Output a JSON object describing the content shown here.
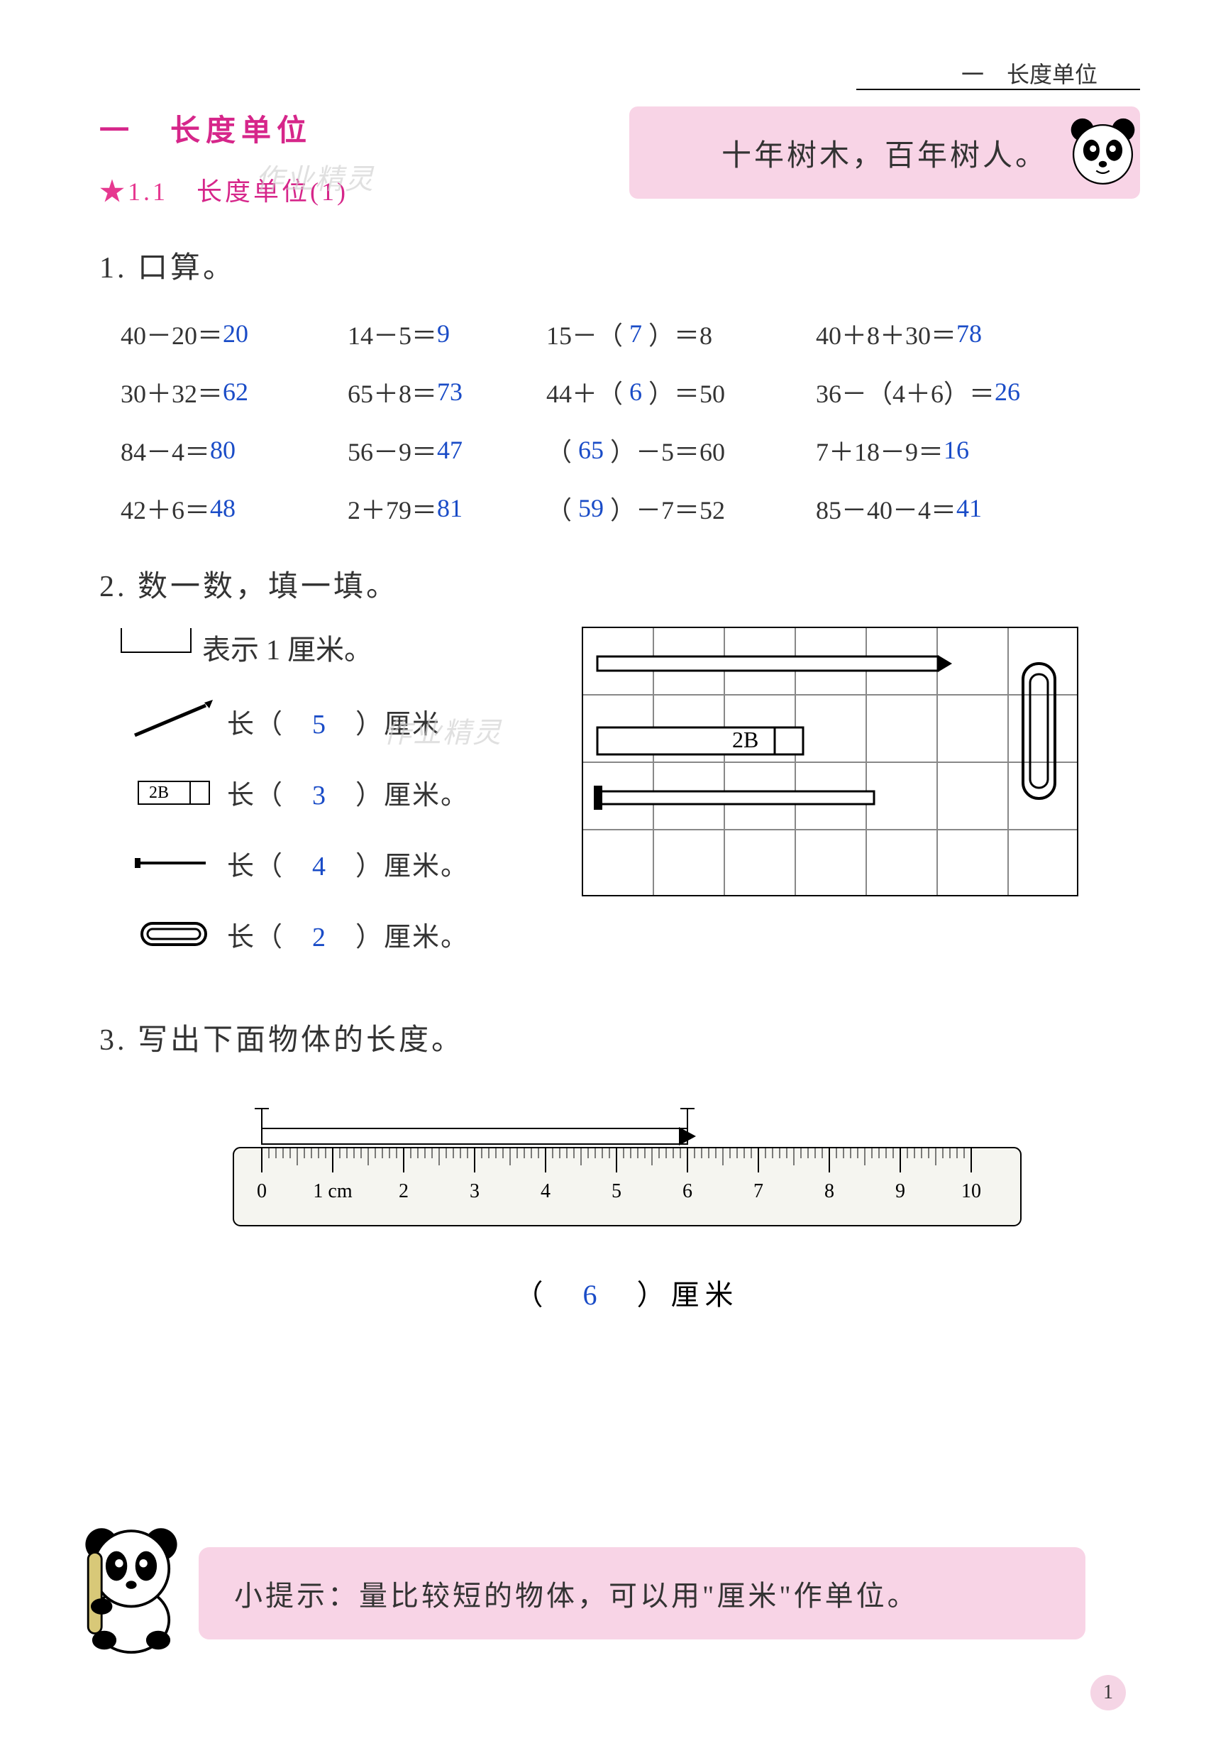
{
  "header": {
    "right": "一　长度单位"
  },
  "title": {
    "main": "一　长度单位",
    "sub_prefix": "★1.1　",
    "sub": "长度单位(1)"
  },
  "pink_box": {
    "text": "十年树木，百年树人。"
  },
  "watermark": "作业精灵",
  "q1": {
    "heading": "1. 口算。",
    "rows": [
      [
        {
          "expr": "40－20＝",
          "ans": "20"
        },
        {
          "expr": "14－5＝",
          "ans": "9"
        },
        {
          "expr_l": "15－（",
          "ans": "7",
          "expr_r": "）＝8"
        },
        {
          "expr": "40＋8＋30＝",
          "ans": "78"
        }
      ],
      [
        {
          "expr": "30＋32＝",
          "ans": "62"
        },
        {
          "expr": "65＋8＝",
          "ans": "73"
        },
        {
          "expr_l": "44＋（",
          "ans": "6",
          "expr_r": "）＝50"
        },
        {
          "expr": "36－（4＋6）＝",
          "ans": "26"
        }
      ],
      [
        {
          "expr": "84－4＝",
          "ans": "80"
        },
        {
          "expr": "56－9＝",
          "ans": "47"
        },
        {
          "expr_l": "（",
          "ans": "65",
          "expr_r": "）－5＝60"
        },
        {
          "expr": "7＋18－9＝",
          "ans": "16"
        }
      ],
      [
        {
          "expr": "42＋6＝",
          "ans": "48"
        },
        {
          "expr": "2＋79＝",
          "ans": "81"
        },
        {
          "expr_l": "（",
          "ans": "59",
          "expr_r": "）－7＝52"
        },
        {
          "expr": "85－40－4＝",
          "ans": "41"
        }
      ]
    ]
  },
  "q2": {
    "heading": "2. 数一数，填一填。",
    "line1": "表示 1 厘米。",
    "items": [
      {
        "ans": "5",
        "unit": "）厘米",
        "pre": "长（"
      },
      {
        "ans": "3",
        "unit": "）厘米。",
        "pre": "长（"
      },
      {
        "ans": "4",
        "unit": "）厘米。",
        "pre": "长（"
      },
      {
        "ans": "2",
        "unit": "）厘米。",
        "pre": "长（"
      }
    ],
    "grid_label": "2B"
  },
  "q3": {
    "heading": "3. 写出下面物体的长度。",
    "ans": "6",
    "unit": "）厘米",
    "pre": "（",
    "ruler": {
      "ticks": [
        "0",
        "1 cm",
        "2",
        "3",
        "4",
        "5",
        "6",
        "7",
        "8",
        "9",
        "10"
      ]
    }
  },
  "tip": {
    "text": "小提示：量比较短的物体，可以用\"厘米\"作单位。"
  },
  "page": "1",
  "colors": {
    "answer": "#1a4cc7",
    "accent": "#d6268a",
    "pink_bg": "#f8d4e6"
  }
}
